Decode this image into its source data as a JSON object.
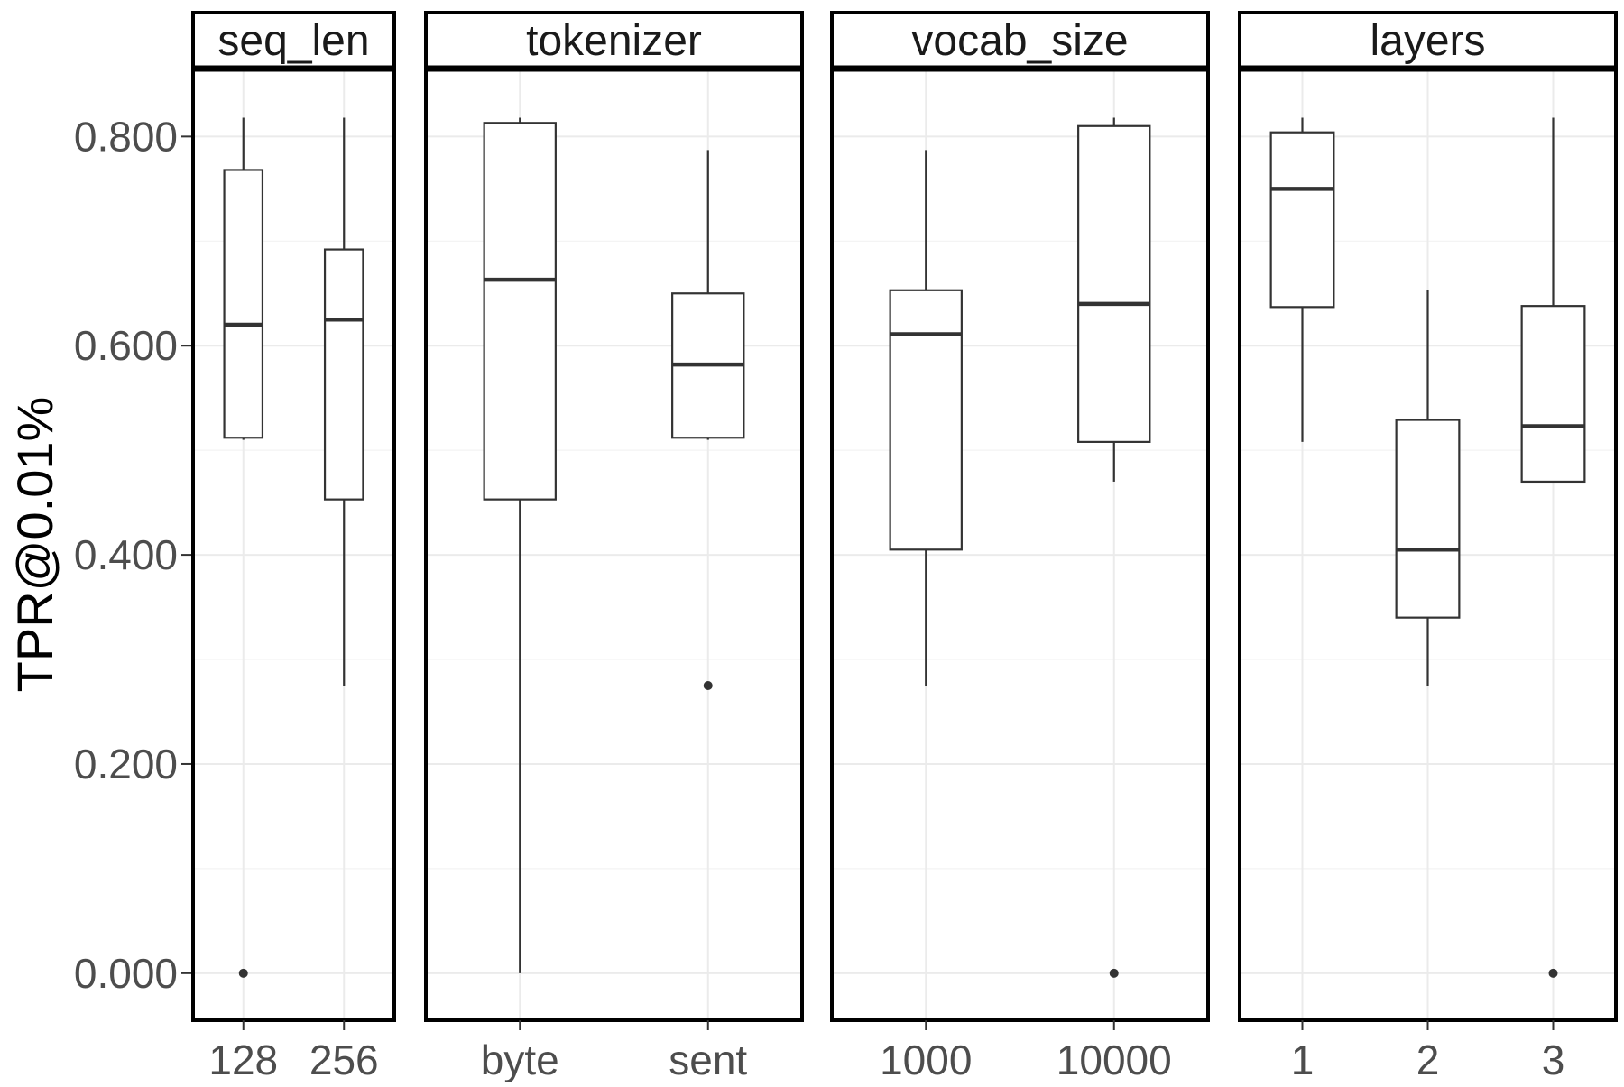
{
  "chart_data": {
    "type": "box",
    "ylabel": "TPR@0.01%",
    "ylim": [
      -0.045,
      0.865
    ],
    "yticks": [
      "0.000",
      "0.200",
      "0.400",
      "0.600",
      "0.800"
    ],
    "ytick_values": [
      0,
      0.2,
      0.4,
      0.6,
      0.8
    ],
    "grid": true,
    "panels": [
      {
        "facet": "seq_len",
        "categories": [
          "128",
          "256"
        ],
        "boxes": [
          {
            "category": "128",
            "lower_whisker": 0.51,
            "q1": 0.512,
            "median": 0.62,
            "q3": 0.768,
            "upper_whisker": 0.818,
            "outliers": [
              0.0
            ]
          },
          {
            "category": "256",
            "lower_whisker": 0.275,
            "q1": 0.453,
            "median": 0.625,
            "q3": 0.692,
            "upper_whisker": 0.818,
            "outliers": []
          }
        ]
      },
      {
        "facet": "tokenizer",
        "categories": [
          "byte",
          "sent"
        ],
        "boxes": [
          {
            "category": "byte",
            "lower_whisker": 0.0,
            "q1": 0.453,
            "median": 0.663,
            "q3": 0.813,
            "upper_whisker": 0.818,
            "outliers": []
          },
          {
            "category": "sent",
            "lower_whisker": 0.51,
            "q1": 0.512,
            "median": 0.582,
            "q3": 0.65,
            "upper_whisker": 0.787,
            "outliers": [
              0.275
            ]
          }
        ]
      },
      {
        "facet": "vocab_size",
        "categories": [
          "1000",
          "10000"
        ],
        "boxes": [
          {
            "category": "1000",
            "lower_whisker": 0.275,
            "q1": 0.405,
            "median": 0.611,
            "q3": 0.653,
            "upper_whisker": 0.787,
            "outliers": []
          },
          {
            "category": "10000",
            "lower_whisker": 0.47,
            "q1": 0.508,
            "median": 0.64,
            "q3": 0.81,
            "upper_whisker": 0.818,
            "outliers": [
              0.0
            ]
          }
        ]
      },
      {
        "facet": "layers",
        "categories": [
          "1",
          "2",
          "3"
        ],
        "boxes": [
          {
            "category": "1",
            "lower_whisker": 0.508,
            "q1": 0.637,
            "median": 0.75,
            "q3": 0.804,
            "upper_whisker": 0.818,
            "outliers": []
          },
          {
            "category": "2",
            "lower_whisker": 0.275,
            "q1": 0.34,
            "median": 0.405,
            "q3": 0.529,
            "upper_whisker": 0.653,
            "outliers": []
          },
          {
            "category": "3",
            "lower_whisker": 0.47,
            "q1": 0.47,
            "median": 0.523,
            "q3": 0.638,
            "upper_whisker": 0.818,
            "outliers": [
              0.0
            ]
          }
        ]
      }
    ]
  }
}
